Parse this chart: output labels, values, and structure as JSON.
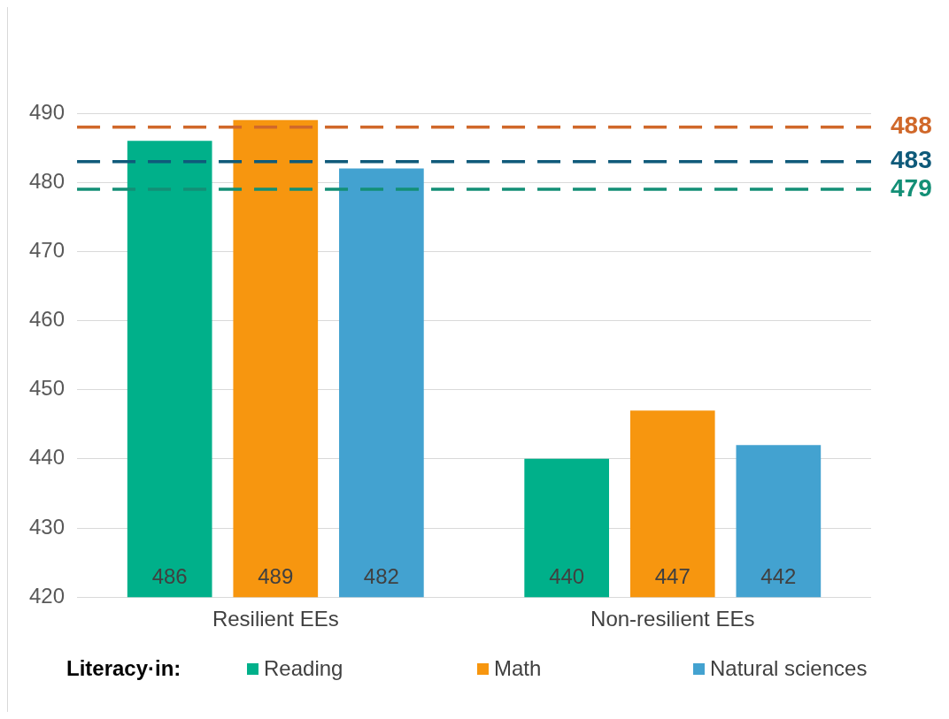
{
  "chart_data": {
    "type": "bar",
    "categories": [
      "Resilient EEs",
      "Non-resilient EEs"
    ],
    "series": [
      {
        "name": "Reading",
        "color": "#00b08a",
        "values": [
          486,
          440
        ]
      },
      {
        "name": "Math",
        "color": "#f7960f",
        "values": [
          489,
          447
        ]
      },
      {
        "name": "Natural sciences",
        "color": "#43a2d0",
        "values": [
          482,
          442
        ]
      }
    ],
    "ylim": [
      420,
      490
    ],
    "yticks": [
      420,
      430,
      440,
      450,
      460,
      470,
      480,
      490
    ],
    "grid": "y",
    "data_labels": true,
    "legend": "bottom",
    "legend_title": "Literacy·in:",
    "ref_lines": [
      {
        "axis": "y",
        "value": 488,
        "label": "488",
        "color": "#d0682a",
        "line_style": "dashed"
      },
      {
        "axis": "y",
        "value": 483,
        "label": "483",
        "color": "#0f5a7a",
        "line_style": "dashed"
      },
      {
        "axis": "y",
        "value": 479,
        "label": "479",
        "color": "#138f76",
        "line_style": "dashed"
      }
    ]
  }
}
